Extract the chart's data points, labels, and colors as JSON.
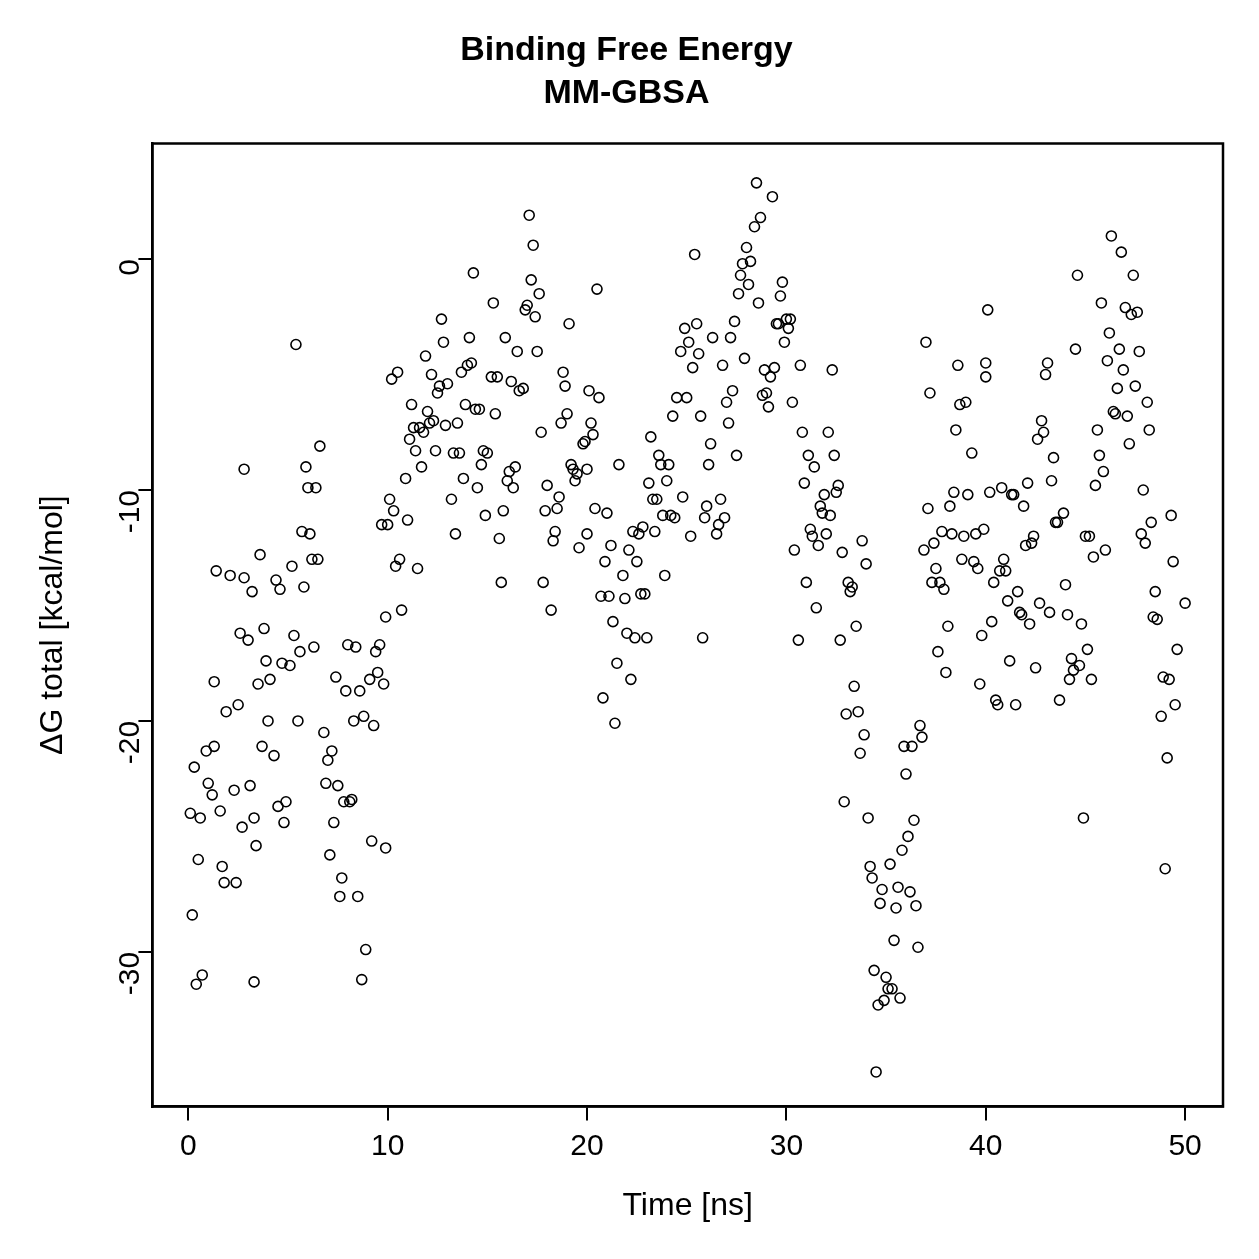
{
  "chart_data": {
    "type": "scatter",
    "title": "Binding Free Energy",
    "subtitle": "MM-GBSA",
    "xlabel": "Time [ns]",
    "ylabel": "ΔG total [kcal/mol]",
    "xlim": [
      -1.8,
      51.9
    ],
    "ylim": [
      -36.7,
      5.0
    ],
    "xticks": [
      0,
      10,
      20,
      30,
      40,
      50
    ],
    "yticks": [
      -30,
      -20,
      -10,
      0
    ],
    "grid": false,
    "legend": false,
    "marker": "circle",
    "series": [
      {
        "color": "#000000",
        "x": [
          0.1,
          0.2,
          0.3,
          0.4,
          0.5,
          0.6,
          0.7,
          0.9,
          1.0,
          1.2,
          1.3,
          1.3,
          1.4,
          1.6,
          1.7,
          1.8,
          1.9,
          2.1,
          2.3,
          2.4,
          2.5,
          2.6,
          2.7,
          2.8,
          2.8,
          3.0,
          3.1,
          3.2,
          3.3,
          3.3,
          3.4,
          3.5,
          3.6,
          3.7,
          3.8,
          3.9,
          4.0,
          4.1,
          4.3,
          4.4,
          4.5,
          4.6,
          4.7,
          4.8,
          4.9,
          5.1,
          5.2,
          5.3,
          5.4,
          5.5,
          5.6,
          5.7,
          5.8,
          5.9,
          6.0,
          6.1,
          6.2,
          6.3,
          6.4,
          6.5,
          6.6,
          6.8,
          6.9,
          7.0,
          7.1,
          7.2,
          7.3,
          7.4,
          7.5,
          7.6,
          7.7,
          7.8,
          7.9,
          8.0,
          8.1,
          8.2,
          8.3,
          8.4,
          8.5,
          8.6,
          8.7,
          8.8,
          8.9,
          9.1,
          9.2,
          9.3,
          9.4,
          9.5,
          9.6,
          9.7,
          9.8,
          9.9,
          9.9,
          10.0,
          10.1,
          10.2,
          10.3,
          10.4,
          10.5,
          10.6,
          10.7,
          10.9,
          11.0,
          11.1,
          11.2,
          11.3,
          11.4,
          11.5,
          11.6,
          11.7,
          11.8,
          11.9,
          12.0,
          12.1,
          12.2,
          12.3,
          12.4,
          12.5,
          12.6,
          12.7,
          12.8,
          12.9,
          13.0,
          13.2,
          13.3,
          13.4,
          13.5,
          13.6,
          13.7,
          13.8,
          13.9,
          14.0,
          14.1,
          14.2,
          14.3,
          14.4,
          14.5,
          14.6,
          14.7,
          14.8,
          14.9,
          15.0,
          15.2,
          15.3,
          15.4,
          15.5,
          15.6,
          15.7,
          15.8,
          15.9,
          16.0,
          16.1,
          16.2,
          16.3,
          16.4,
          16.5,
          16.6,
          16.8,
          16.9,
          17.0,
          17.1,
          17.2,
          17.3,
          17.4,
          17.5,
          17.6,
          17.7,
          17.8,
          17.9,
          18.0,
          18.2,
          18.3,
          18.4,
          18.5,
          18.6,
          18.7,
          18.8,
          18.9,
          19.0,
          19.1,
          19.2,
          19.3,
          19.4,
          19.5,
          19.6,
          19.8,
          19.9,
          20.0,
          20.0,
          20.1,
          20.2,
          20.3,
          20.4,
          20.5,
          20.6,
          20.7,
          20.8,
          20.9,
          21.0,
          21.1,
          21.2,
          21.3,
          21.4,
          21.5,
          21.6,
          21.8,
          21.9,
          22.0,
          22.1,
          22.2,
          22.3,
          22.4,
          22.5,
          22.6,
          22.7,
          22.8,
          22.9,
          23.0,
          23.1,
          23.2,
          23.3,
          23.4,
          23.5,
          23.6,
          23.7,
          23.8,
          23.9,
          24.0,
          24.1,
          24.2,
          24.3,
          24.4,
          24.5,
          24.7,
          24.8,
          24.9,
          25.0,
          25.1,
          25.2,
          25.3,
          25.4,
          25.5,
          25.6,
          25.7,
          25.8,
          25.9,
          26.0,
          26.1,
          26.2,
          26.3,
          26.5,
          26.6,
          26.7,
          26.8,
          26.9,
          27.0,
          27.1,
          27.2,
          27.3,
          27.4,
          27.5,
          27.6,
          27.7,
          27.8,
          27.9,
          28.0,
          28.1,
          28.2,
          28.4,
          28.5,
          28.6,
          28.7,
          28.8,
          28.9,
          29.0,
          29.1,
          29.2,
          29.3,
          29.4,
          29.5,
          29.6,
          29.7,
          29.8,
          29.9,
          30.0,
          30.1,
          30.2,
          30.3,
          30.4,
          30.6,
          30.7,
          30.8,
          30.9,
          31.0,
          31.1,
          31.2,
          31.3,
          31.4,
          31.5,
          31.6,
          31.7,
          31.8,
          31.9,
          32.0,
          32.1,
          32.2,
          32.3,
          32.4,
          32.5,
          32.6,
          32.7,
          32.8,
          32.9,
          33.0,
          33.1,
          33.2,
          33.3,
          33.4,
          33.5,
          33.6,
          33.7,
          33.8,
          33.9,
          34.0,
          34.1,
          34.2,
          34.3,
          34.4,
          34.5,
          34.6,
          34.7,
          34.8,
          34.9,
          35.0,
          35.1,
          35.2,
          35.3,
          35.4,
          35.5,
          35.6,
          35.7,
          35.8,
          35.9,
          36.0,
          36.1,
          36.2,
          36.3,
          36.4,
          36.5,
          36.6,
          36.7,
          36.8,
          36.9,
          37.0,
          37.1,
          37.2,
          37.3,
          37.4,
          37.5,
          37.6,
          37.7,
          37.8,
          37.9,
          38.0,
          38.1,
          38.2,
          38.3,
          38.4,
          38.5,
          38.6,
          38.7,
          38.8,
          38.9,
          39.0,
          39.1,
          39.3,
          39.4,
          39.5,
          39.6,
          39.7,
          39.8,
          39.9,
          40.0,
          40.0,
          40.1,
          40.2,
          40.3,
          40.4,
          40.5,
          40.6,
          40.7,
          40.8,
          40.9,
          41.0,
          41.1,
          41.2,
          41.3,
          41.4,
          41.5,
          41.6,
          41.7,
          41.8,
          41.9,
          42.0,
          42.1,
          42.2,
          42.3,
          42.4,
          42.5,
          42.6,
          42.7,
          42.8,
          42.9,
          43.0,
          43.1,
          43.2,
          43.3,
          43.4,
          43.5,
          43.6,
          43.7,
          43.9,
          44.0,
          44.1,
          44.2,
          44.3,
          44.4,
          44.5,
          44.6,
          44.7,
          44.8,
          44.9,
          45.0,
          45.1,
          45.2,
          45.3,
          45.4,
          45.5,
          45.6,
          45.7,
          45.8,
          45.9,
          46.0,
          46.1,
          46.2,
          46.3,
          46.4,
          46.5,
          46.6,
          46.7,
          46.8,
          46.9,
          47.0,
          47.1,
          47.2,
          47.3,
          47.4,
          47.5,
          47.6,
          47.7,
          47.8,
          47.9,
          48.0,
          48.1,
          48.2,
          48.3,
          48.4,
          48.5,
          48.6,
          48.8,
          48.9,
          49.0,
          49.1,
          49.2,
          49.3,
          49.4,
          49.5,
          49.6,
          50.0
        ],
        "values": [
          -24.0,
          -28.4,
          -22.0,
          -31.4,
          -26.0,
          -24.2,
          -31.0,
          -21.3,
          -22.7,
          -23.2,
          -21.1,
          -18.3,
          -13.5,
          -23.9,
          -26.3,
          -27.0,
          -19.6,
          -13.7,
          -23.0,
          -27.0,
          -19.3,
          -16.2,
          -24.6,
          -13.8,
          -9.1,
          -16.5,
          -22.8,
          -14.4,
          -24.2,
          -31.3,
          -25.4,
          -18.4,
          -12.8,
          -21.1,
          -16.0,
          -17.4,
          -20.0,
          -18.2,
          -21.5,
          -13.9,
          -23.7,
          -14.3,
          -17.5,
          -24.4,
          -23.5,
          -17.6,
          -13.3,
          -16.3,
          -3.7,
          -20.0,
          -17.0,
          -11.8,
          -14.2,
          -9.0,
          -9.9,
          -11.9,
          -13.0,
          -16.8,
          -9.9,
          -13.0,
          -8.1,
          -20.5,
          -22.7,
          -21.7,
          -25.8,
          -21.3,
          -24.4,
          -18.1,
          -22.8,
          -27.6,
          -26.8,
          -23.5,
          -18.7,
          -16.7,
          -23.5,
          -23.4,
          -20.0,
          -16.8,
          -27.6,
          -18.7,
          -31.2,
          -19.8,
          -29.9,
          -18.2,
          -25.2,
          -20.2,
          -17.0,
          -17.9,
          -16.7,
          -11.5,
          -18.4,
          -15.5,
          -25.5,
          -11.5,
          -10.4,
          -5.2,
          -10.9,
          -13.3,
          -4.9,
          -13.0,
          -15.2,
          -9.5,
          -11.3,
          -7.8,
          -6.3,
          -7.3,
          -8.3,
          -13.4,
          -7.3,
          -9.0,
          -7.5,
          -4.2,
          -6.6,
          -7.1,
          -5.0,
          -7.0,
          -8.3,
          -5.8,
          -5.5,
          -2.6,
          -3.6,
          -7.2,
          -5.4,
          -10.4,
          -8.4,
          -11.9,
          -7.1,
          -8.4,
          -4.9,
          -9.5,
          -6.3,
          -4.6,
          -3.4,
          -4.5,
          -0.6,
          -6.5,
          -9.9,
          -6.5,
          -8.9,
          -8.3,
          -11.1,
          -8.4,
          -5.1,
          -1.9,
          -6.7,
          -5.1,
          -12.1,
          -14.0,
          -10.9,
          -3.4,
          -9.6,
          -9.2,
          -5.3,
          -9.9,
          -9.0,
          -4.0,
          -5.7,
          -5.6,
          -2.2,
          -2.0,
          1.9,
          -0.9,
          0.6,
          -2.5,
          -4.0,
          -1.5,
          -7.5,
          -14.0,
          -10.9,
          -9.8,
          -15.2,
          -12.2,
          -11.8,
          -10.8,
          -10.3,
          -7.1,
          -4.9,
          -5.5,
          -6.7,
          -2.8,
          -8.9,
          -9.1,
          -9.6,
          -9.3,
          -12.5,
          -8.0,
          -7.9,
          -9.1,
          -11.9,
          -5.7,
          -7.1,
          -7.6,
          -10.8,
          -1.3,
          -6.0,
          -14.6,
          -19.0,
          -13.1,
          -11.0,
          -14.6,
          -12.4,
          -15.7,
          -20.1,
          -17.5,
          -8.9,
          -13.7,
          -14.7,
          -16.2,
          -12.6,
          -18.2,
          -11.8,
          -16.4,
          -13.1,
          -11.9,
          -14.5,
          -11.6,
          -14.5,
          -16.4,
          -9.7,
          -7.7,
          -10.4,
          -11.8,
          -10.4,
          -8.5,
          -8.9,
          -11.1,
          -13.7,
          -9.6,
          -8.9,
          -11.1,
          -6.8,
          -11.2,
          -6.0,
          -4.0,
          -10.3,
          -3.0,
          -6.0,
          -3.6,
          -12.0,
          -4.7,
          0.2,
          -2.8,
          -4.1,
          -6.8,
          -16.4,
          -11.2,
          -10.7,
          -8.9,
          -8.0,
          -3.4,
          -11.9,
          -11.5,
          -10.4,
          -4.6,
          -11.2,
          -6.2,
          -7.1,
          -3.4,
          -5.7,
          -2.7,
          -8.5,
          -1.5,
          -0.7,
          -0.2,
          -4.3,
          0.5,
          -1.1,
          -0.1,
          1.4,
          3.3,
          -1.9,
          1.8,
          -5.9,
          -4.8,
          -5.8,
          -6.4,
          -5.1,
          2.7,
          -4.7,
          -2.8,
          -2.8,
          -1.6,
          -1.0,
          -3.6,
          -2.6,
          -3.0,
          -2.6,
          -6.2,
          -12.6,
          -16.5,
          -4.6,
          -7.5,
          -9.7,
          -14.0,
          -8.5,
          -11.7,
          -12.0,
          -9.0,
          -15.1,
          -12.4,
          -10.7,
          -11.0,
          -10.2,
          -11.9,
          -7.5,
          -11.1,
          -4.8,
          -8.5,
          -10.1,
          -9.8,
          -16.5,
          -12.7,
          -23.5,
          -19.7,
          -14.0,
          -14.4,
          -14.2,
          -18.5,
          -15.9,
          -19.6,
          -21.4,
          -12.2,
          -20.6,
          -13.2,
          -24.2,
          -26.3,
          -26.8,
          -30.8,
          -35.2,
          -32.3,
          -27.9,
          -27.3,
          -32.1,
          -31.1,
          -31.6,
          -26.2,
          -31.6,
          -29.5,
          -28.1,
          -27.2,
          -32.0,
          -25.6,
          -21.1,
          -22.3,
          -25.0,
          -27.4,
          -21.1,
          -24.3,
          -28.0,
          -29.8,
          -20.2,
          -20.7,
          -12.6,
          -3.6,
          -10.8,
          -5.8,
          -14.0,
          -12.3,
          -13.4,
          -17.0,
          -14.0,
          -11.8,
          -14.3,
          -17.9,
          -15.9,
          -10.7,
          -11.9,
          -10.1,
          -7.4,
          -4.6,
          -6.3,
          -13.0,
          -12.0,
          -6.2,
          -10.2,
          -8.4,
          -13.1,
          -11.9,
          -13.4,
          -18.4,
          -16.3,
          -11.7,
          -4.5,
          -5.1,
          -2.2,
          -10.1,
          -15.7,
          -14.0,
          -19.1,
          -19.3,
          -13.5,
          -9.9,
          -13.0,
          -13.5,
          -14.8,
          -17.4,
          -10.2,
          -10.2,
          -19.3,
          -14.4,
          -15.3,
          -15.4,
          -10.7,
          -12.4,
          -9.7,
          -15.8,
          -12.3,
          -12.0,
          -17.7,
          -7.8,
          -14.9,
          -7.0,
          -7.5,
          -5.0,
          -4.5,
          -15.3,
          -9.6,
          -8.6,
          -11.4,
          -11.4,
          -19.1,
          -11.0,
          -14.1,
          -15.4,
          -18.2,
          -17.3,
          -17.8,
          -3.9,
          -0.7,
          -17.6,
          -15.8,
          -24.2,
          -12.0,
          -16.9,
          -12.0,
          -18.2,
          -12.9,
          -9.8,
          -7.4,
          -8.5,
          -1.9,
          -9.2,
          -12.6,
          -4.4,
          -3.2,
          1.0,
          -6.6,
          -6.7,
          -5.6,
          -3.9,
          0.3,
          -4.8,
          -2.1,
          -6.8,
          -8.0,
          -2.4,
          -0.7,
          -5.5,
          -2.3,
          -4.0,
          -11.9,
          -10.0,
          -12.3,
          -6.2,
          -7.4,
          -11.4,
          -15.5,
          -14.4,
          -15.6,
          -19.8,
          -18.1,
          -26.4,
          -21.6,
          -18.2,
          -11.1,
          -13.1,
          -19.3,
          -16.9,
          -14.9
        ]
      }
    ]
  }
}
